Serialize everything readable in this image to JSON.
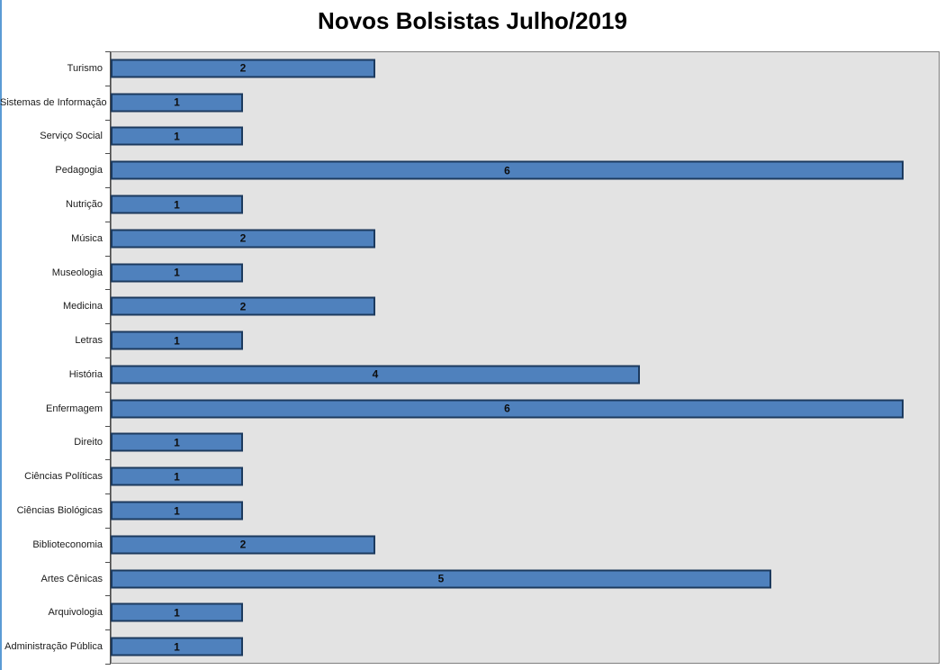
{
  "chart_data": {
    "type": "bar",
    "orientation": "horizontal",
    "title": "Novos Bolsistas Julho/2019",
    "category_order": "top-to-bottom",
    "categories": [
      "Turismo",
      "Sistemas de Informação",
      "Serviço Social",
      "Pedagogia",
      "Nutrição",
      "Música",
      "Museologia",
      "Medicina",
      "Letras",
      "História",
      "Enfermagem",
      "Direito",
      "Ciências Políticas",
      "Ciências Biológicas",
      "Biblioteconomia",
      "Artes Cênicas",
      "Arquivologia",
      "Administração Pública"
    ],
    "values": [
      2,
      1,
      1,
      6,
      1,
      2,
      1,
      2,
      1,
      4,
      6,
      1,
      1,
      1,
      2,
      5,
      1,
      1
    ],
    "xlabel": "",
    "ylabel": "",
    "xlim": [
      0,
      6.27
    ],
    "grid": false,
    "legend": false,
    "data_labels_position": "center",
    "styles": {
      "bar_fill": "#4F81BD",
      "bar_border": "#1C3A5E",
      "plot_background": "#E3E3E3",
      "plot_border": "#7F7F7F",
      "axis_color": "#4D4D4D",
      "title_color": "#000000",
      "category_label_color": "#1A1A1A",
      "value_label_color": "#0D0D0D",
      "left_edge_color": "#5B9BD5"
    }
  }
}
